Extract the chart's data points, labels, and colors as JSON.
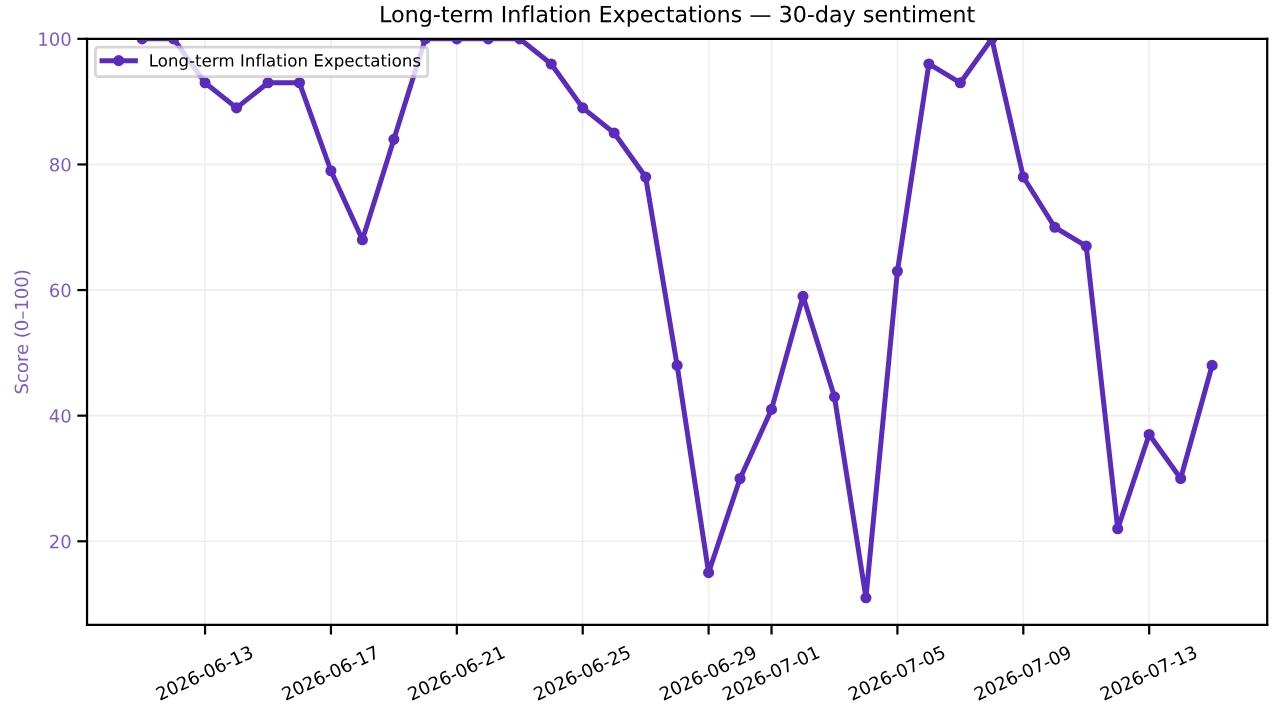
{
  "chart_data": {
    "type": "line",
    "title": "Long-term Inflation Expectations — 30-day sentiment",
    "ylabel": "Score (0–100)",
    "x": [
      "2026-06-11",
      "2026-06-12",
      "2026-06-13",
      "2026-06-14",
      "2026-06-15",
      "2026-06-16",
      "2026-06-17",
      "2026-06-18",
      "2026-06-19",
      "2026-06-20",
      "2026-06-21",
      "2026-06-22",
      "2026-06-23",
      "2026-06-24",
      "2026-06-25",
      "2026-06-26",
      "2026-06-27",
      "2026-06-28",
      "2026-06-29",
      "2026-06-30",
      "2026-07-01",
      "2026-07-02",
      "2026-07-03",
      "2026-07-04",
      "2026-07-05",
      "2026-07-06",
      "2026-07-07",
      "2026-07-08",
      "2026-07-09",
      "2026-07-10",
      "2026-07-11",
      "2026-07-12",
      "2026-07-13",
      "2026-07-14",
      "2026-07-15"
    ],
    "series": [
      {
        "name": "Long-term Inflation Expectations",
        "color": "#5b2bbd",
        "values": [
          100,
          100,
          93,
          89,
          93,
          93,
          79,
          68,
          84,
          100,
          100,
          100,
          100,
          96,
          89,
          85,
          78,
          48,
          15,
          30,
          41,
          59,
          43,
          11,
          63,
          96,
          93,
          100,
          78,
          70,
          67,
          22,
          37,
          30,
          48
        ]
      }
    ],
    "xlim": [
      "2026-06-09T06:00",
      "2026-07-16T18:00"
    ],
    "xticks": [
      "2026-06-13",
      "2026-06-17",
      "2026-06-21",
      "2026-06-25",
      "2026-06-29",
      "2026-07-01",
      "2026-07-05",
      "2026-07-09",
      "2026-07-13"
    ],
    "ylim": [
      6.7,
      100
    ],
    "yticks": [
      20,
      40,
      60,
      80,
      100
    ],
    "grid": true,
    "legend": "top left",
    "marker": "circle",
    "line_style": "solid"
  }
}
